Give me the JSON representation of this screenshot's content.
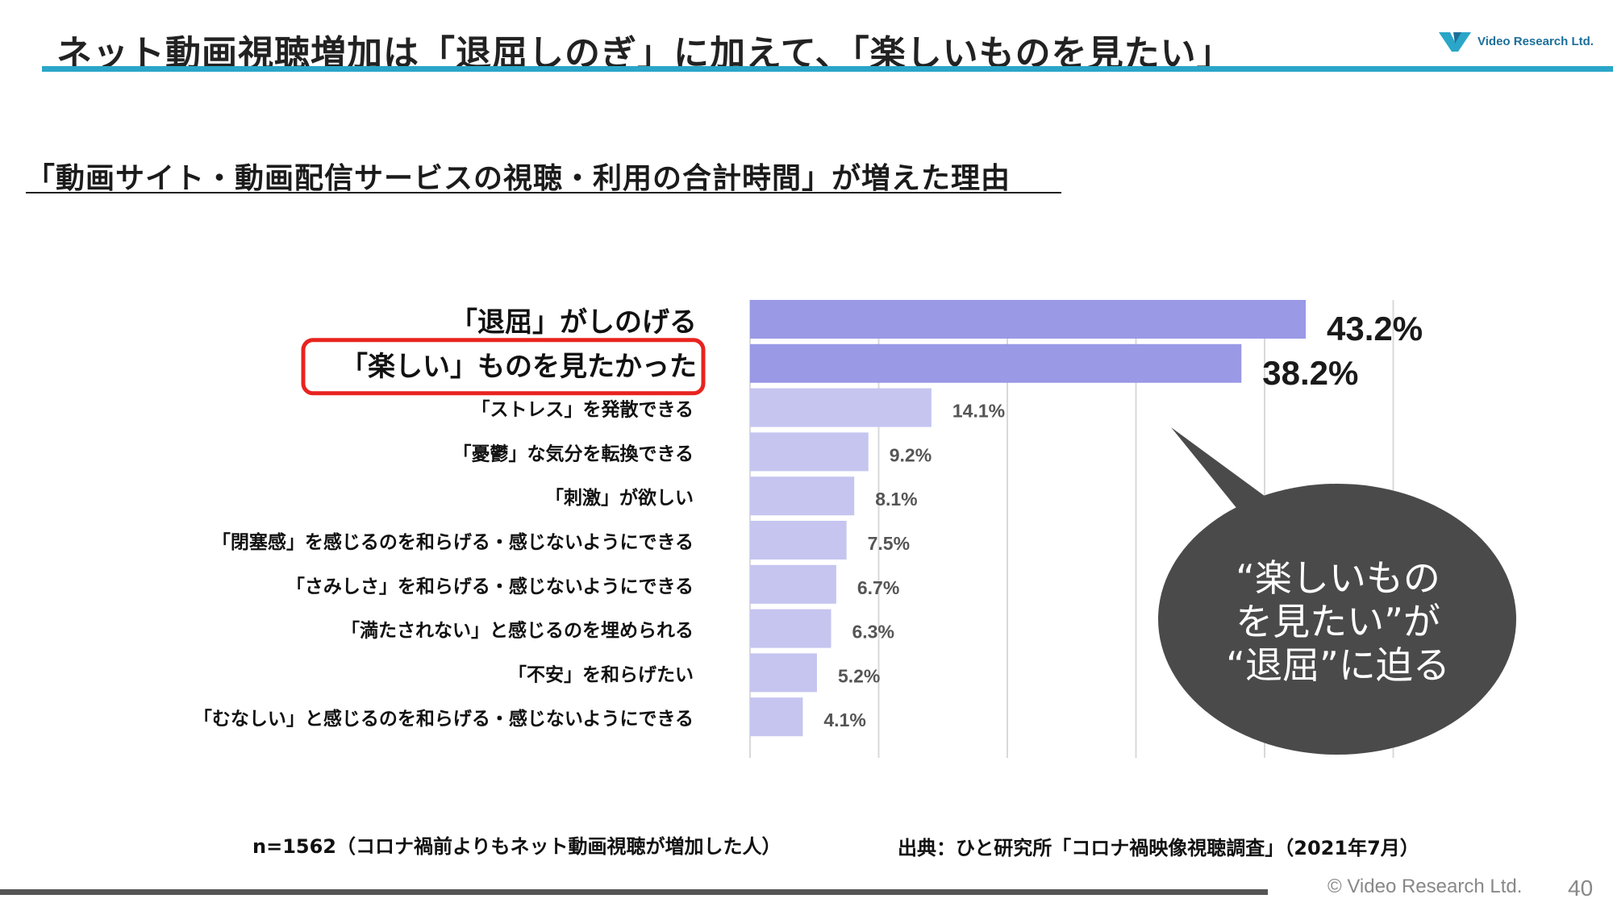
{
  "page": {
    "title": "ネット動画視聴増加は「退屈しのぎ」に加えて、「楽しいものを見たい」",
    "logo_text": "Video Research Ltd.",
    "subtitle": "「動画サイト・動画配信サービスの視聴・利用の合計時間」が増えた理由",
    "callout": {
      "lines": [
        "“楽しいもの",
        "を見たい”が",
        "“退屈”に迫る"
      ]
    },
    "footnote_sample": "n=1562（コロナ禍前よりもネット動画視聴が増加した人）",
    "footnote_source": "出典：ひと研究所「コロナ禍映像視聴調査」（2021年7月）",
    "copyright": "© Video Research Ltd.",
    "page_number": "40"
  },
  "colors": {
    "accent_rule": "#2aa6c8",
    "bar_top": "#9999e6",
    "bar_other": "#c5c5f0",
    "highlight_box": "#e8231f",
    "callout_fill": "#4a4a4a",
    "grid": "#d9d9d9"
  },
  "chart_data": {
    "type": "bar",
    "orientation": "horizontal",
    "categories": [
      "「退屈」がしのげる",
      "「楽しい」ものを見たかった",
      "「ストレス」を発散できる",
      "「憂鬱」な気分を転換できる",
      "「刺激」が欲しい",
      "「閉塞感」を感じるのを和らげる・感じないようにできる",
      "「さみしさ」を和らげる・感じないようにできる",
      "「満たされない」と感じるのを埋められる",
      "「不安」を和らげたい",
      "「むなしい」と感じるのを和らげる・感じないようにできる"
    ],
    "values": [
      43.2,
      38.2,
      14.1,
      9.2,
      8.1,
      7.5,
      6.7,
      6.3,
      5.2,
      4.1
    ],
    "data_labels": [
      "43.2%",
      "38.2%",
      "14.1%",
      "9.2%",
      "8.1%",
      "7.5%",
      "6.7%",
      "6.3%",
      "5.2%",
      "4.1%"
    ],
    "emphasized": [
      true,
      true,
      false,
      false,
      false,
      false,
      false,
      false,
      false,
      false
    ],
    "highlighted_category": "「楽しい」ものを見たかった",
    "title": "「動画サイト・動画配信サービスの視聴・利用の合計時間」が増えた理由",
    "xlabel": "",
    "ylabel": "",
    "xlim": [
      0,
      50
    ],
    "grid": true,
    "legend": "none"
  }
}
